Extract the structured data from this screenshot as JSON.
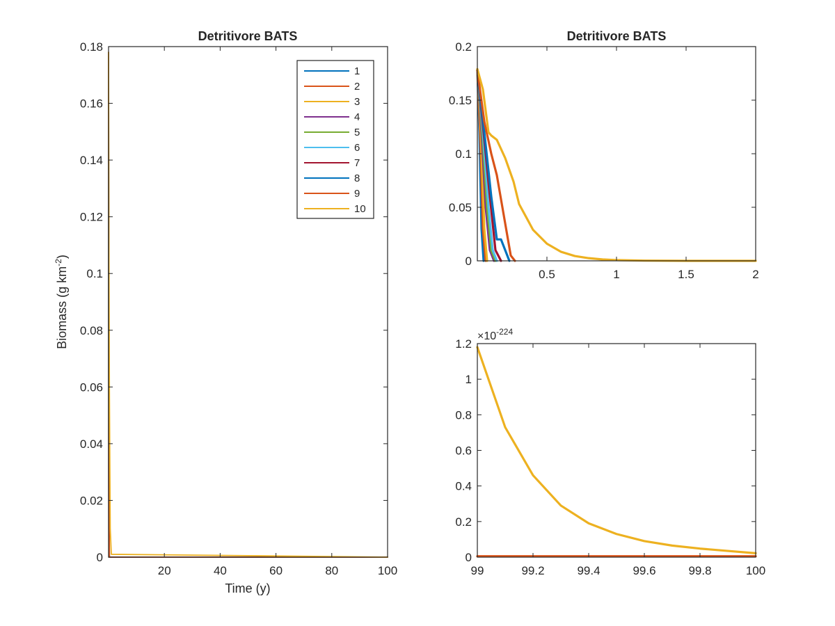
{
  "figure": {
    "colors": {
      "axis": "#262626",
      "series": [
        "#0072BD",
        "#D95319",
        "#EDB120",
        "#7E2F8E",
        "#77AC30",
        "#4DBEEE",
        "#A2142F",
        "#0072BD",
        "#D95319",
        "#EDB120"
      ]
    }
  },
  "chart_data": [
    {
      "id": "left",
      "type": "line",
      "title": "Detritivore BATS",
      "xlabel": "Time (y)",
      "ylabel_main": "Biomass (g km",
      "ylabel_sup": "-2",
      "ylabel_end": ")",
      "xlim": [
        0,
        100
      ],
      "ylim": [
        0,
        0.18
      ],
      "xticks": [
        20,
        40,
        60,
        80,
        100
      ],
      "yticks": [
        0,
        0.02,
        0.04,
        0.06,
        0.08,
        0.1,
        0.12,
        0.14,
        0.16,
        0.18
      ],
      "xtick_labels": [
        "20",
        "40",
        "60",
        "80",
        "100"
      ],
      "ytick_labels": [
        "0",
        "0.02",
        "0.04",
        "0.06",
        "0.08",
        "0.1",
        "0.12",
        "0.14",
        "0.16",
        "0.18"
      ],
      "legend": {
        "placement": "top-right",
        "entries": [
          "1",
          "2",
          "3",
          "4",
          "5",
          "6",
          "7",
          "8",
          "9",
          "10"
        ]
      },
      "series": [
        {
          "name": "1",
          "x": [
            0,
            0.05,
            0.1,
            0.3,
            1,
            100
          ],
          "y": [
            0.178,
            0.06,
            0.0,
            0.0,
            0.0,
            0.0
          ]
        },
        {
          "name": "2",
          "x": [
            0,
            0.05,
            0.1,
            0.3,
            1,
            100
          ],
          "y": [
            0.178,
            0.07,
            0.0,
            0.0,
            0.0,
            0.0
          ]
        },
        {
          "name": "3",
          "x": [
            0,
            0.05,
            0.1,
            0.3,
            1,
            100
          ],
          "y": [
            0.178,
            0.08,
            0.0,
            0.0,
            0.0,
            0.0
          ]
        },
        {
          "name": "4",
          "x": [
            0,
            0.05,
            0.1,
            0.3,
            1,
            100
          ],
          "y": [
            0.178,
            0.09,
            0.005,
            0.0,
            0.0,
            0.0
          ]
        },
        {
          "name": "5",
          "x": [
            0,
            0.05,
            0.1,
            0.3,
            1,
            100
          ],
          "y": [
            0.178,
            0.1,
            0.01,
            0.0,
            0.0,
            0.0
          ]
        },
        {
          "name": "6",
          "x": [
            0,
            0.05,
            0.1,
            0.3,
            1,
            100
          ],
          "y": [
            0.178,
            0.11,
            0.02,
            0.0,
            0.0,
            0.0
          ]
        },
        {
          "name": "7",
          "x": [
            0,
            0.05,
            0.1,
            0.3,
            1,
            100
          ],
          "y": [
            0.178,
            0.12,
            0.03,
            0.0,
            0.0,
            0.0
          ]
        },
        {
          "name": "8",
          "x": [
            0,
            0.05,
            0.1,
            0.3,
            1,
            100
          ],
          "y": [
            0.178,
            0.13,
            0.04,
            0.0,
            0.0,
            0.0
          ]
        },
        {
          "name": "9",
          "x": [
            0,
            0.05,
            0.1,
            0.3,
            1,
            100
          ],
          "y": [
            0.178,
            0.14,
            0.09,
            0.0,
            0.0,
            0.0
          ]
        },
        {
          "name": "10",
          "x": [
            0,
            0.05,
            0.1,
            0.3,
            0.6,
            1,
            100
          ],
          "y": [
            0.178,
            0.16,
            0.118,
            0.06,
            0.01,
            0.001,
            0.0
          ]
        }
      ]
    },
    {
      "id": "top-right",
      "type": "line",
      "title": "Detritivore BATS",
      "xlim": [
        0,
        2
      ],
      "ylim": [
        0,
        0.2
      ],
      "xticks": [
        0.5,
        1,
        1.5,
        2
      ],
      "yticks": [
        0,
        0.05,
        0.1,
        0.15,
        0.2
      ],
      "xtick_labels": [
        "0.5",
        "1",
        "1.5",
        "2"
      ],
      "ytick_labels": [
        "0",
        "0.05",
        "0.1",
        "0.15",
        "0.2"
      ],
      "series": [
        {
          "name": "1",
          "x": [
            0,
            0.015,
            0.03,
            0.045
          ],
          "y": [
            0.178,
            0.12,
            0.03,
            0.0
          ]
        },
        {
          "name": "2",
          "x": [
            0,
            0.02,
            0.04,
            0.06
          ],
          "y": [
            0.178,
            0.12,
            0.03,
            0.0
          ]
        },
        {
          "name": "3",
          "x": [
            0,
            0.025,
            0.05,
            0.07
          ],
          "y": [
            0.178,
            0.12,
            0.03,
            0.0
          ]
        },
        {
          "name": "4",
          "x": [
            0,
            0.03,
            0.06,
            0.09,
            0.12
          ],
          "y": [
            0.178,
            0.12,
            0.05,
            0.01,
            0.0
          ]
        },
        {
          "name": "5",
          "x": [
            0,
            0.035,
            0.07,
            0.1,
            0.13
          ],
          "y": [
            0.178,
            0.12,
            0.05,
            0.01,
            0.0
          ]
        },
        {
          "name": "6",
          "x": [
            0,
            0.04,
            0.08,
            0.11,
            0.14
          ],
          "y": [
            0.178,
            0.12,
            0.05,
            0.01,
            0.0
          ]
        },
        {
          "name": "7",
          "x": [
            0,
            0.045,
            0.09,
            0.13,
            0.17
          ],
          "y": [
            0.178,
            0.12,
            0.06,
            0.01,
            0.0
          ]
        },
        {
          "name": "8",
          "x": [
            0,
            0.05,
            0.1,
            0.14,
            0.17,
            0.2,
            0.23
          ],
          "y": [
            0.178,
            0.12,
            0.06,
            0.02,
            0.02,
            0.01,
            0.0
          ]
        },
        {
          "name": "9",
          "x": [
            0,
            0.05,
            0.1,
            0.14,
            0.2,
            0.24,
            0.27
          ],
          "y": [
            0.178,
            0.13,
            0.1,
            0.08,
            0.035,
            0.005,
            0.0
          ]
        },
        {
          "name": "10",
          "x": [
            0,
            0.04,
            0.08,
            0.1,
            0.14,
            0.2,
            0.26,
            0.3,
            0.4,
            0.5,
            0.6,
            0.7,
            0.8,
            0.9,
            1.0,
            1.2,
            1.5,
            2.0
          ],
          "y": [
            0.179,
            0.16,
            0.12,
            0.117,
            0.113,
            0.096,
            0.074,
            0.053,
            0.029,
            0.016,
            0.0085,
            0.0045,
            0.0025,
            0.0013,
            0.0007,
            0.0002,
            0.0,
            0.0
          ]
        }
      ]
    },
    {
      "id": "bottom-right",
      "type": "line",
      "xlim": [
        99,
        100
      ],
      "ylim": [
        0,
        1.2
      ],
      "exponent_base": "×10",
      "exponent_power": "-224",
      "xticks": [
        99,
        99.2,
        99.4,
        99.6,
        99.8,
        100
      ],
      "yticks": [
        0,
        0.2,
        0.4,
        0.6,
        0.8,
        1,
        1.2
      ],
      "xtick_labels": [
        "99",
        "99.2",
        "99.4",
        "99.6",
        "99.8",
        "100"
      ],
      "ytick_labels": [
        "0",
        "0.2",
        "0.4",
        "0.6",
        "0.8",
        "1",
        "1.2"
      ],
      "series": [
        {
          "name": "10",
          "x": [
            99,
            99.1,
            99.2,
            99.3,
            99.4,
            99.5,
            99.6,
            99.7,
            99.8,
            99.9,
            100
          ],
          "y": [
            1.18,
            0.73,
            0.46,
            0.29,
            0.19,
            0.13,
            0.09,
            0.065,
            0.048,
            0.035,
            0.022
          ]
        },
        {
          "name": "9",
          "x": [
            99,
            100
          ],
          "y": [
            0.005,
            0.005
          ]
        }
      ]
    }
  ]
}
